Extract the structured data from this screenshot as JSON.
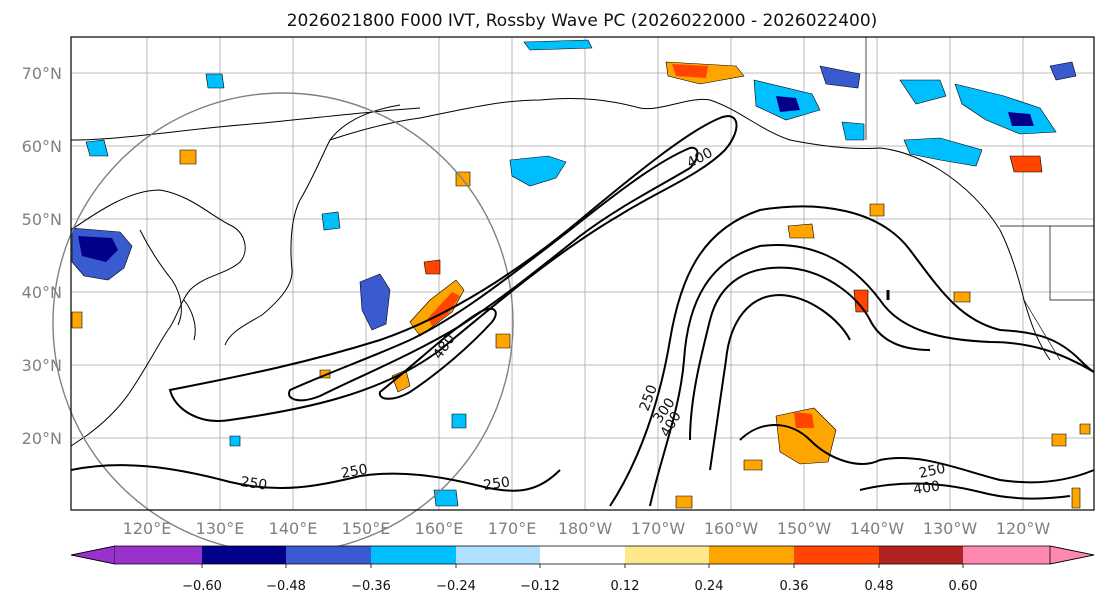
{
  "title": "2026021800 F000 IVT, Rossby Wave PC (2026022000 - 2026022400)",
  "map": {
    "region": "North Pacific",
    "lat_labels": [
      "70°N",
      "60°N",
      "50°N",
      "40°N",
      "30°N",
      "20°N"
    ],
    "lon_labels": [
      "120°E",
      "130°E",
      "140°E",
      "150°E",
      "160°E",
      "170°E",
      "180°W",
      "170°W",
      "160°W",
      "150°W",
      "140°W",
      "130°W",
      "120°W"
    ],
    "contour_labels": [
      "400",
      "480",
      "250",
      "300",
      "400",
      "250",
      "250",
      "250",
      "250",
      "400"
    ],
    "colors": {
      "land_outline": "#000000",
      "contour": "#000000",
      "grid": "#a9a9a9",
      "circle": "#808080"
    }
  },
  "colorbar": {
    "tick_labels": [
      "−0.60",
      "−0.48",
      "−0.36",
      "−0.24",
      "−0.12",
      "0.12",
      "0.24",
      "0.36",
      "0.48",
      "0.60"
    ],
    "colors": [
      "#9932cc",
      "#00008b",
      "#3a5bcf",
      "#00bfff",
      "#afe0ff",
      "#ffffff",
      "#ffe88a",
      "#ffa500",
      "#ff4500",
      "#b22222",
      "#ff88b0"
    ]
  }
}
